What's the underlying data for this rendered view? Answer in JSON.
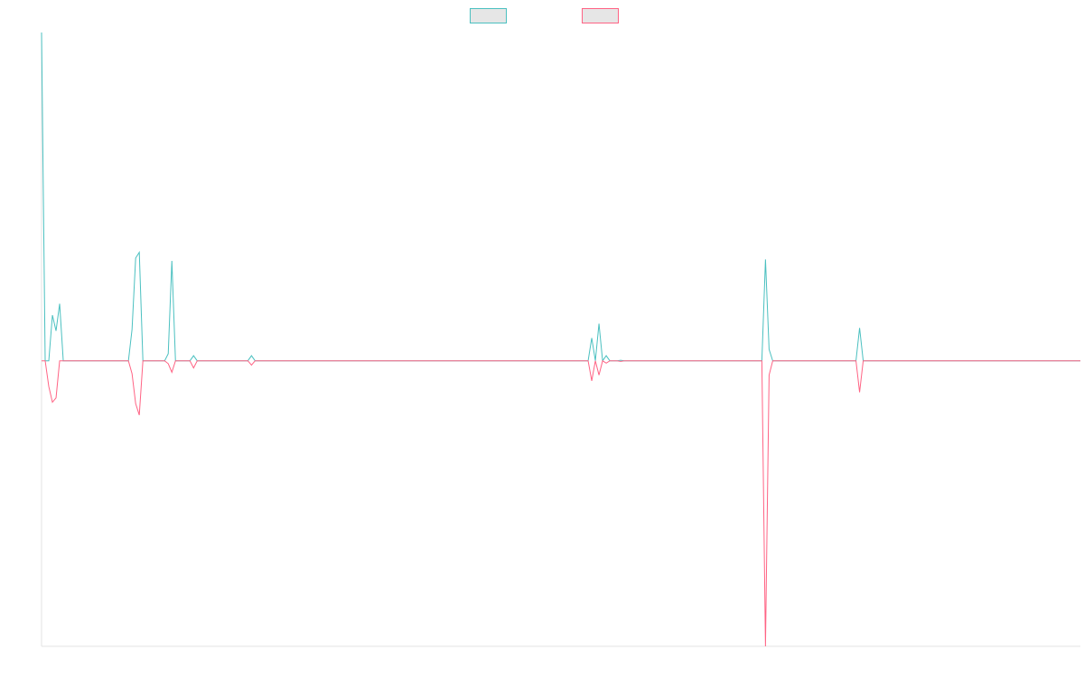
{
  "chart_data": {
    "type": "line",
    "title": "",
    "xlabel": "",
    "ylabel": "",
    "grid": false,
    "legend_position": "top-center",
    "x_count": 288,
    "ylim": [
      -1.0,
      1.15
    ],
    "series": [
      {
        "name": "",
        "color": "#4bc0c0",
        "fill": "#e6e6e6",
        "points": [
          [
            0,
            1.15
          ],
          [
            1,
            0
          ],
          [
            2,
            0
          ],
          [
            3,
            0.16
          ],
          [
            4,
            0.105
          ],
          [
            5,
            0.2
          ],
          [
            6,
            0
          ],
          [
            7,
            0
          ],
          [
            8,
            0
          ],
          [
            9,
            0
          ],
          [
            10,
            0
          ],
          [
            11,
            0
          ],
          [
            12,
            0
          ],
          [
            13,
            0
          ],
          [
            14,
            0
          ],
          [
            15,
            0
          ],
          [
            16,
            0
          ],
          [
            17,
            0
          ],
          [
            18,
            0
          ],
          [
            19,
            0
          ],
          [
            20,
            0
          ],
          [
            21,
            0
          ],
          [
            22,
            0
          ],
          [
            23,
            0
          ],
          [
            24,
            0
          ],
          [
            25,
            0.11
          ],
          [
            26,
            0.36
          ],
          [
            27,
            0.38
          ],
          [
            28,
            0
          ],
          [
            29,
            0
          ],
          [
            30,
            0
          ],
          [
            31,
            0
          ],
          [
            32,
            0
          ],
          [
            33,
            0
          ],
          [
            34,
            0
          ],
          [
            35,
            0.025
          ],
          [
            36,
            0.35
          ],
          [
            37,
            0
          ],
          [
            38,
            0
          ],
          [
            39,
            0
          ],
          [
            40,
            0
          ],
          [
            41,
            0
          ],
          [
            42,
            0.018
          ],
          [
            43,
            0
          ],
          [
            44,
            0
          ],
          [
            45,
            0
          ],
          [
            46,
            0
          ],
          [
            47,
            0
          ],
          [
            48,
            0
          ],
          [
            49,
            0
          ],
          [
            50,
            0
          ],
          [
            51,
            0
          ],
          [
            52,
            0
          ],
          [
            53,
            0
          ],
          [
            54,
            0
          ],
          [
            55,
            0
          ],
          [
            56,
            0
          ],
          [
            57,
            0
          ],
          [
            58,
            0.018
          ],
          [
            59,
            0
          ],
          [
            151,
            0
          ],
          [
            152,
            0.08
          ],
          [
            153,
            0
          ],
          [
            154,
            0.13
          ],
          [
            155,
            0
          ],
          [
            156,
            0.018
          ],
          [
            157,
            0
          ],
          [
            158,
            0
          ],
          [
            159,
            0
          ],
          [
            160,
            0.002
          ],
          [
            161,
            0
          ],
          [
            198,
            0
          ],
          [
            199,
            0
          ],
          [
            200,
            0.355
          ],
          [
            201,
            0.04
          ],
          [
            202,
            0
          ],
          [
            225,
            0
          ],
          [
            226,
            0.115
          ],
          [
            227,
            0
          ],
          [
            287,
            0
          ]
        ]
      },
      {
        "name": "",
        "color": "#ff6384",
        "fill": "#e6e6e6",
        "points": [
          [
            0,
            0
          ],
          [
            1,
            0
          ],
          [
            2,
            -0.09
          ],
          [
            3,
            -0.145
          ],
          [
            4,
            -0.13
          ],
          [
            5,
            0
          ],
          [
            6,
            0
          ],
          [
            7,
            0
          ],
          [
            8,
            0
          ],
          [
            9,
            0
          ],
          [
            10,
            0
          ],
          [
            11,
            0
          ],
          [
            12,
            0
          ],
          [
            13,
            0
          ],
          [
            14,
            0
          ],
          [
            15,
            0
          ],
          [
            16,
            0
          ],
          [
            17,
            0
          ],
          [
            18,
            0
          ],
          [
            19,
            0
          ],
          [
            20,
            0
          ],
          [
            21,
            0
          ],
          [
            22,
            0
          ],
          [
            23,
            0
          ],
          [
            24,
            0
          ],
          [
            25,
            -0.045
          ],
          [
            26,
            -0.15
          ],
          [
            27,
            -0.19
          ],
          [
            28,
            0
          ],
          [
            29,
            0
          ],
          [
            30,
            0
          ],
          [
            31,
            0
          ],
          [
            32,
            0
          ],
          [
            33,
            0
          ],
          [
            34,
            0
          ],
          [
            35,
            -0.01
          ],
          [
            36,
            -0.04
          ],
          [
            37,
            0
          ],
          [
            38,
            0
          ],
          [
            39,
            0
          ],
          [
            40,
            0
          ],
          [
            41,
            0
          ],
          [
            42,
            -0.025
          ],
          [
            43,
            0
          ],
          [
            44,
            0
          ],
          [
            45,
            0
          ],
          [
            46,
            0
          ],
          [
            47,
            0
          ],
          [
            48,
            0
          ],
          [
            49,
            0
          ],
          [
            50,
            0
          ],
          [
            51,
            0
          ],
          [
            52,
            0
          ],
          [
            53,
            0
          ],
          [
            54,
            0
          ],
          [
            55,
            0
          ],
          [
            56,
            0
          ],
          [
            57,
            0
          ],
          [
            58,
            -0.015
          ],
          [
            59,
            0
          ],
          [
            151,
            0
          ],
          [
            152,
            -0.07
          ],
          [
            153,
            0
          ],
          [
            154,
            -0.05
          ],
          [
            155,
            0
          ],
          [
            156,
            -0.008
          ],
          [
            157,
            0
          ],
          [
            158,
            0
          ],
          [
            159,
            0
          ],
          [
            160,
            -0.002
          ],
          [
            161,
            0
          ],
          [
            198,
            0
          ],
          [
            199,
            0
          ],
          [
            200,
            -1.0
          ],
          [
            201,
            -0.05
          ],
          [
            202,
            0
          ],
          [
            225,
            0
          ],
          [
            226,
            -0.11
          ],
          [
            227,
            0
          ],
          [
            287,
            0
          ]
        ]
      }
    ]
  }
}
